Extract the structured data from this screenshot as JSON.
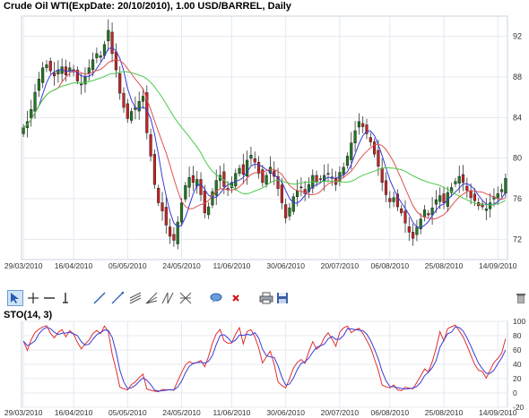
{
  "chart_data": [
    {
      "type": "candlestick",
      "title": "Crude Oil WTI(ExpDate: 20/10/2010), 1.00 USD/BARREL, Daily",
      "ylim": [
        70,
        94
      ],
      "yticks": [
        72,
        76,
        80,
        84,
        88,
        92
      ],
      "x_tick_labels": [
        "29/03/2010",
        "16/04/2010",
        "05/05/2010",
        "24/05/2010",
        "11/06/2010",
        "30/06/2010",
        "20/07/2010",
        "06/08/2010",
        "25/08/2010",
        "14/09/2010"
      ],
      "x_tick_index": [
        0,
        13,
        27,
        41,
        54,
        68,
        82,
        95,
        109,
        123
      ],
      "grid": true,
      "up_color": "#1f7a1f",
      "down_color": "#cc2222",
      "closes": [
        83.0,
        83.6,
        84.8,
        86.5,
        87.8,
        88.9,
        89.2,
        88.6,
        88.1,
        88.7,
        89.0,
        88.2,
        88.9,
        88.5,
        87.6,
        87.3,
        88.0,
        88.9,
        89.7,
        90.3,
        90.1,
        91.2,
        92.6,
        90.3,
        88.7,
        86.4,
        85.0,
        83.9,
        84.6,
        85.0,
        85.6,
        86.1,
        82.5,
        80.2,
        77.4,
        75.6,
        74.8,
        73.4,
        72.3,
        71.9,
        73.7,
        75.6,
        77.3,
        78.1,
        77.6,
        77.9,
        76.4,
        74.6,
        75.2,
        76.7,
        77.8,
        78.3,
        77.2,
        76.9,
        77.6,
        78.5,
        79.0,
        78.4,
        79.8,
        80.3,
        79.6,
        78.5,
        77.6,
        78.3,
        79.1,
        78.2,
        77.0,
        75.6,
        74.1,
        75.1,
        76.2,
        76.8,
        77.1,
        76.5,
        77.4,
        78.3,
        77.6,
        77.9,
        78.3,
        78.5,
        78.0,
        77.4,
        78.6,
        79.1,
        80.2,
        81.5,
        82.7,
        83.6,
        83.1,
        82.4,
        81.6,
        80.4,
        79.2,
        77.6,
        76.4,
        75.7,
        76.1,
        75.2,
        74.6,
        73.6,
        72.7,
        72.1,
        73.2,
        74.0,
        74.9,
        74.4,
        75.1,
        75.9,
        76.3,
        75.6,
        76.6,
        77.1,
        77.7,
        78.2,
        77.6,
        76.8,
        76.1,
        75.8,
        75.3,
        75.2,
        75.0,
        75.6,
        76.2,
        76.5,
        76.9,
        78.0
      ],
      "series": [
        {
          "name": "",
          "color": "#3a3ad6",
          "period": 5
        },
        {
          "name": "",
          "color": "#e05050",
          "period": 10
        },
        {
          "name": "",
          "color": "#4cc84c",
          "period": 25
        }
      ]
    },
    {
      "type": "line",
      "title": "STO(14, 3)",
      "ylim": [
        -20,
        100
      ],
      "yticks": [
        100,
        80,
        60,
        40,
        20,
        0,
        -20
      ],
      "x_tick_labels": [
        "29/03/2010",
        "16/04/2010",
        "05/05/2010",
        "24/05/2010",
        "11/06/2010",
        "30/06/2010",
        "20/07/2010",
        "06/08/2010",
        "25/08/2010",
        "14/09/2010"
      ],
      "series": [
        {
          "name": "",
          "color": "#e03030",
          "lookback": 14
        },
        {
          "name": "",
          "color": "#3a3ad6",
          "smooth": 3
        }
      ]
    }
  ],
  "toolbar": {
    "icons": [
      "pointer-icon",
      "crosshair-icon",
      "horizontal-line-icon",
      "vertical-line-icon",
      "trend-line-icon",
      "ray-line-icon",
      "channel-icon",
      "fibonacci-icon",
      "fan-icon",
      "fan-lines-icon",
      "comment-icon",
      "delete-x-icon",
      "print-icon",
      "save-icon",
      "trash-icon"
    ]
  }
}
